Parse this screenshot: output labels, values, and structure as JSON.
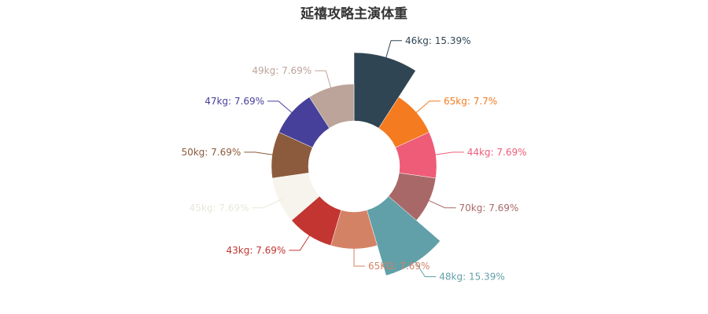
{
  "chart_data": {
    "type": "pie",
    "subtype": "rose-donut",
    "title": "延禧攻略主演体重",
    "slices": [
      {
        "label": "46kg: 15.39%",
        "name": "46kg",
        "value": 15.39,
        "color": "#2f4554"
      },
      {
        "label": "65kg: 7.7%",
        "name": "65kg",
        "value": 7.7,
        "color": "#f47b20"
      },
      {
        "label": "44kg: 7.69%",
        "name": "44kg",
        "value": 7.69,
        "color": "#ee5c78"
      },
      {
        "label": "70kg: 7.69%",
        "name": "70kg",
        "value": 7.69,
        "color": "#a96868"
      },
      {
        "label": "48kg: 15.39%",
        "name": "48kg",
        "value": 15.39,
        "color": "#61a0a8"
      },
      {
        "label": "65KG: 7.69%",
        "name": "65KG",
        "value": 7.69,
        "color": "#d48265"
      },
      {
        "label": "43kg: 7.69%",
        "name": "43kg",
        "value": 7.69,
        "color": "#c23531"
      },
      {
        "label": "45kg: 7.69%",
        "name": "45kg",
        "value": 7.69,
        "color": "#f6f4ec"
      },
      {
        "label": "50kg: 7.69%",
        "name": "50kg",
        "value": 7.69,
        "color": "#8c5a3c"
      },
      {
        "label": "47kg: 7.69%",
        "name": "47kg",
        "value": 7.69,
        "color": "#46409a"
      },
      {
        "label": "49kg: 7.69%",
        "name": "49kg",
        "value": 7.69,
        "color": "#bca49a"
      }
    ]
  }
}
